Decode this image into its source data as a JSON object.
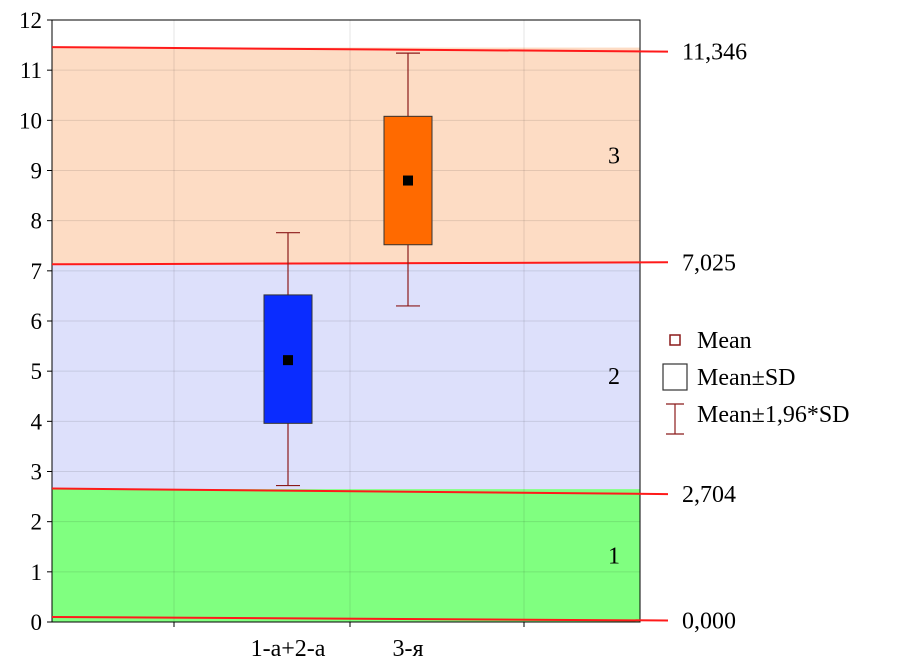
{
  "chart_data": {
    "type": "box",
    "title": "",
    "xlabel": "",
    "ylabel": "",
    "ylim": [
      0,
      12
    ],
    "yticks": [
      0,
      1,
      2,
      3,
      4,
      5,
      6,
      7,
      8,
      9,
      10,
      11,
      12
    ],
    "ytick_labels": [
      "0",
      "1",
      "2",
      "3",
      "4",
      "5",
      "6",
      "7",
      "8",
      "9",
      "10",
      "11",
      "12"
    ],
    "categories": [
      "1-а+2-а",
      "3-я"
    ],
    "series": [
      {
        "category": "1-а+2-а",
        "mean": 5.22,
        "sd_low": 3.96,
        "sd_high": 6.52,
        "ci_low": 2.72,
        "ci_high": 7.76,
        "color": "#0a2cff"
      },
      {
        "category": "3-я",
        "mean": 8.8,
        "sd_low": 7.52,
        "sd_high": 10.08,
        "ci_low": 6.3,
        "ci_high": 11.34,
        "color": "#ff6a00"
      }
    ],
    "zones": [
      {
        "label": "1",
        "from": 0,
        "to": 2.65,
        "color": "#80ff80"
      },
      {
        "label": "2",
        "from": 2.65,
        "to": 7.15,
        "color": "#dde0fb"
      },
      {
        "label": "3",
        "from": 7.15,
        "to": 11.45,
        "color": "#fddcc4"
      }
    ],
    "threshold_lines": [
      {
        "label": "0,000",
        "y_left": 0.1,
        "y_right": 0.03
      },
      {
        "label": "2,704",
        "y_left": 2.66,
        "y_right": 2.55
      },
      {
        "label": "7,025",
        "y_left": 7.13,
        "y_right": 7.17
      },
      {
        "label": "11,346",
        "y_left": 11.46,
        "y_right": 11.37
      }
    ],
    "legend": {
      "position": "right",
      "items": [
        {
          "symbol": "small-square",
          "label": "Mean"
        },
        {
          "symbol": "box",
          "label": "Mean±SD"
        },
        {
          "symbol": "whisker",
          "label": "Mean±1,96*SD"
        }
      ]
    },
    "grid": true,
    "colors": {
      "threshold": "#ff1a1a",
      "whisker": "#8b1a1a",
      "mean_marker": "#000000",
      "legend_symbol": "#8b1a1a"
    }
  }
}
